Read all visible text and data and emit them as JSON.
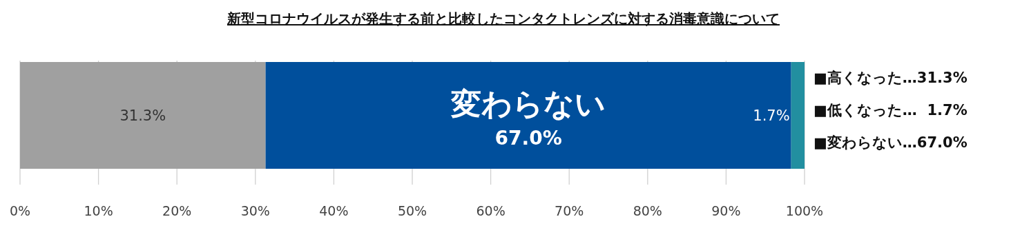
{
  "chart_data": {
    "type": "bar",
    "orientation": "horizontal",
    "stacked": true,
    "title": "新型コロナウイルスが発生する前と比較したコンタクトレンズに対する消毒意識について",
    "categories": [
      null
    ],
    "series": [
      {
        "color": "#a0a0a0",
        "values": [
          31.3
        ],
        "value_labels": [
          "31.3%"
        ]
      },
      {
        "name": "変わらない",
        "color": "#004f9c",
        "values": [
          67.0
        ],
        "value_labels": [
          "67.0%"
        ]
      },
      {
        "color": "#228fa0",
        "values": [
          1.7
        ],
        "value_labels": [
          "1.7%"
        ]
      }
    ],
    "xlim": [
      0,
      100
    ],
    "xticks": [
      {
        "value": 0,
        "label": "0%"
      },
      {
        "value": 10,
        "label": "10%"
      },
      {
        "value": 20,
        "label": "20%"
      },
      {
        "value": 30,
        "label": "30%"
      },
      {
        "value": 40,
        "label": "40%"
      },
      {
        "value": 50,
        "label": "50%"
      },
      {
        "value": 60,
        "label": "60%"
      },
      {
        "value": 70,
        "label": "70%"
      },
      {
        "value": 80,
        "label": "80%"
      },
      {
        "value": 90,
        "label": "90%"
      },
      {
        "value": 100,
        "label": "100%"
      }
    ],
    "grid": "x",
    "legend": false,
    "annotations": [
      "■高くなった…31.3%",
      "■低くなった…  1.7%",
      "■変わらない…67.0%"
    ]
  }
}
